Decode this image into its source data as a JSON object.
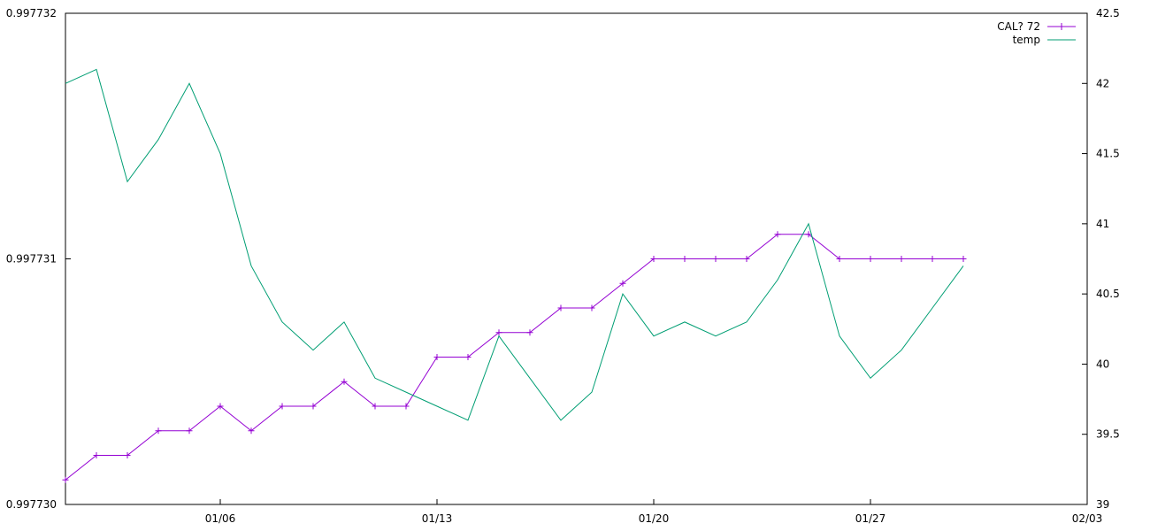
{
  "chart_data": {
    "type": "line",
    "title": "",
    "xlabel": "",
    "ylabel": "",
    "x_range": [
      "2025-01-01",
      "2025-02-03"
    ],
    "x_ticks": [
      {
        "date": "2025-01-06",
        "label": "01/06"
      },
      {
        "date": "2025-01-13",
        "label": "01/13"
      },
      {
        "date": "2025-01-20",
        "label": "01/20"
      },
      {
        "date": "2025-01-27",
        "label": "01/27"
      },
      {
        "date": "2025-02-03",
        "label": "02/03"
      }
    ],
    "y_left": {
      "range": [
        0.99773,
        0.997732
      ],
      "ticks": [
        {
          "value": 0.99773,
          "label": "0.997730"
        },
        {
          "value": 0.997731,
          "label": "0.997731"
        },
        {
          "value": 0.997732,
          "label": "0.997732"
        }
      ]
    },
    "y_right": {
      "range": [
        39,
        42.5
      ],
      "ticks": [
        {
          "value": 39,
          "label": "39"
        },
        {
          "value": 39.5,
          "label": "39.5"
        },
        {
          "value": 40,
          "label": "40"
        },
        {
          "value": 40.5,
          "label": "40.5"
        },
        {
          "value": 41,
          "label": "41"
        },
        {
          "value": 41.5,
          "label": "41.5"
        },
        {
          "value": 42,
          "label": "42"
        },
        {
          "value": 42.5,
          "label": "42.5"
        }
      ]
    },
    "grid": false,
    "legend_position": "top-right",
    "series": [
      {
        "name": "CAL? 72",
        "axis": "left",
        "color": "#9400d3",
        "marker": "plus",
        "x": [
          "2025-01-01",
          "2025-01-02",
          "2025-01-03",
          "2025-01-04",
          "2025-01-05",
          "2025-01-06",
          "2025-01-07",
          "2025-01-08",
          "2025-01-09",
          "2025-01-10",
          "2025-01-11",
          "2025-01-12",
          "2025-01-13",
          "2025-01-14",
          "2025-01-15",
          "2025-01-16",
          "2025-01-17",
          "2025-01-18",
          "2025-01-19",
          "2025-01-20",
          "2025-01-21",
          "2025-01-22",
          "2025-01-23",
          "2025-01-24",
          "2025-01-25",
          "2025-01-26",
          "2025-01-27",
          "2025-01-28",
          "2025-01-29",
          "2025-01-30"
        ],
        "values": [
          0.9977301,
          0.9977302,
          0.9977302,
          0.9977303,
          0.9977303,
          0.9977304,
          0.9977303,
          0.9977304,
          0.9977304,
          0.9977305,
          0.9977304,
          0.9977304,
          0.9977306,
          0.9977306,
          0.9977307,
          0.9977307,
          0.9977308,
          0.9977308,
          0.9977309,
          0.997731,
          0.997731,
          0.997731,
          0.997731,
          0.9977311,
          0.9977311,
          0.997731,
          0.997731,
          0.997731,
          0.997731,
          0.997731
        ]
      },
      {
        "name": "temp",
        "axis": "right",
        "color": "#009e73",
        "marker": "none",
        "x": [
          "2025-01-01",
          "2025-01-02",
          "2025-01-03",
          "2025-01-04",
          "2025-01-05",
          "2025-01-06",
          "2025-01-07",
          "2025-01-08",
          "2025-01-09",
          "2025-01-10",
          "2025-01-11",
          "2025-01-12",
          "2025-01-13",
          "2025-01-14",
          "2025-01-15",
          "2025-01-16",
          "2025-01-17",
          "2025-01-18",
          "2025-01-19",
          "2025-01-20",
          "2025-01-21",
          "2025-01-22",
          "2025-01-23",
          "2025-01-24",
          "2025-01-25",
          "2025-01-26",
          "2025-01-27",
          "2025-01-28",
          "2025-01-29",
          "2025-01-30"
        ],
        "values": [
          42,
          42.1,
          41.3,
          41.6,
          42,
          41.5,
          40.7,
          40.3,
          40.1,
          40.3,
          39.9,
          39.8,
          39.7,
          39.6,
          40.2,
          39.9,
          39.6,
          39.8,
          40.5,
          40.2,
          40.3,
          40.2,
          40.3,
          40.6,
          41,
          40.2,
          39.9,
          40.1,
          40.4,
          40.7
        ]
      }
    ]
  }
}
